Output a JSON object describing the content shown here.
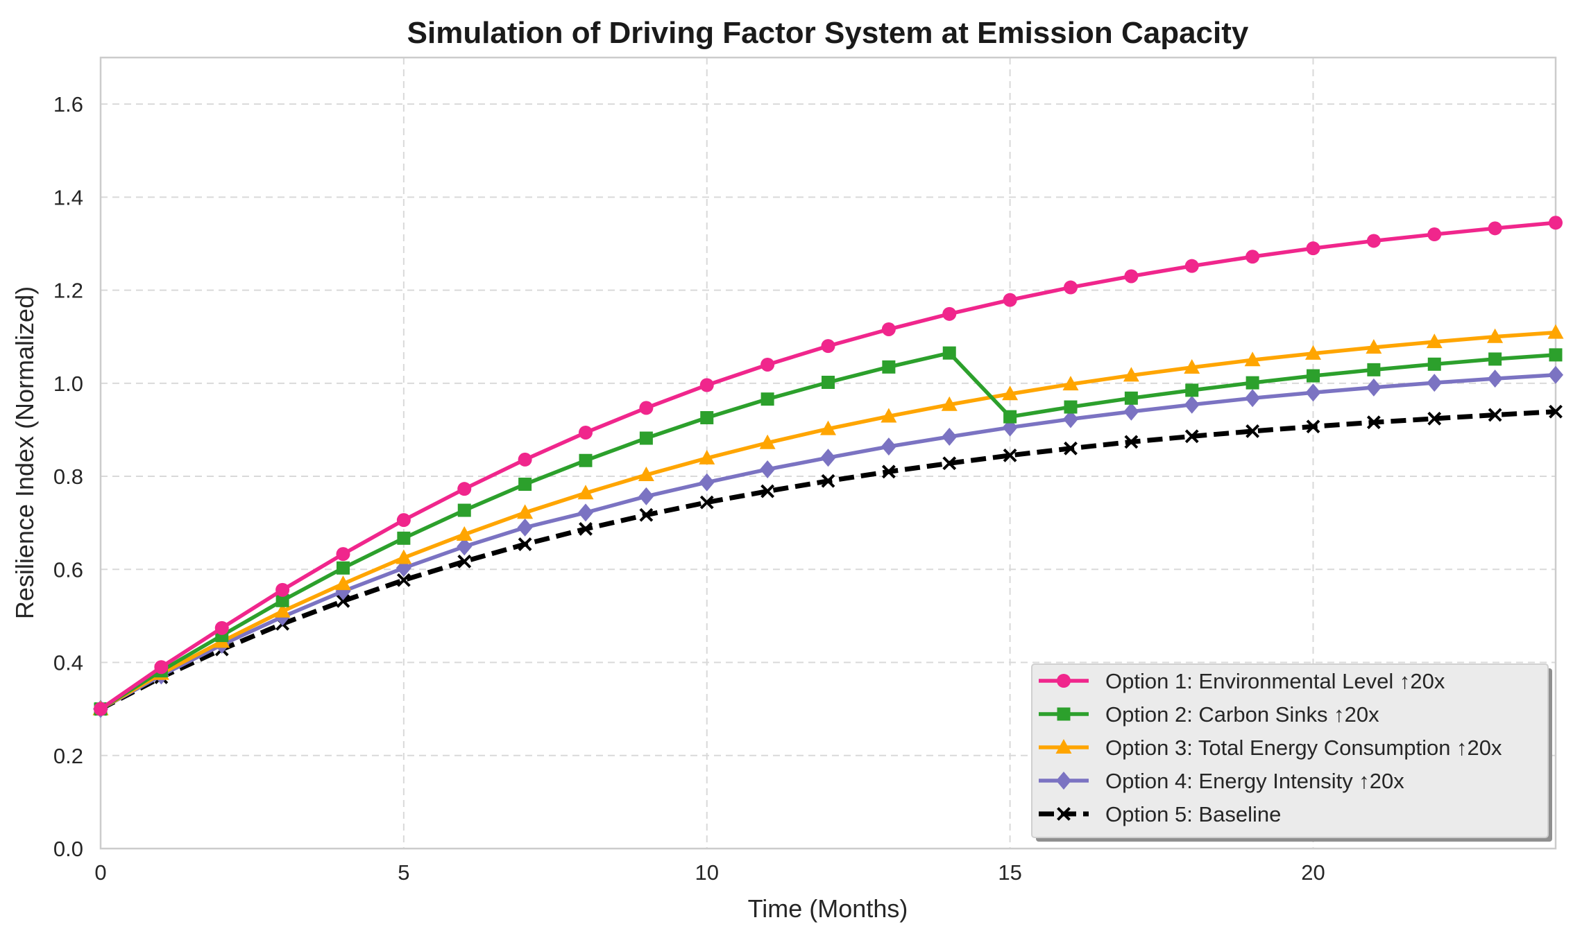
{
  "chart_data": {
    "type": "line",
    "title": "Simulation of Driving Factor System at Emission Capacity",
    "xlabel": "Time (Months)",
    "ylabel": "Resilience Index (Normalized)",
    "xlim": [
      0,
      24
    ],
    "ylim": [
      0,
      1.7
    ],
    "xticks": [
      0,
      5,
      10,
      15,
      20
    ],
    "yticks": [
      0.0,
      0.2,
      0.4,
      0.6,
      0.8,
      1.0,
      1.2,
      1.4,
      1.6
    ],
    "ytick_labels": [
      "0.0",
      "0.2",
      "0.4",
      "0.6",
      "0.8",
      "1.0",
      "1.2",
      "1.4",
      "1.6"
    ],
    "grid": true,
    "legend_position": "bottom-right",
    "x": [
      0,
      1,
      2,
      3,
      4,
      5,
      6,
      7,
      8,
      9,
      10,
      11,
      12,
      13,
      14,
      15,
      16,
      17,
      18,
      19,
      20,
      21,
      22,
      23,
      24
    ],
    "series": [
      {
        "name": "Option 1: Environmental Level ↑20x",
        "color": "#f0268c",
        "marker": "circle",
        "dash": "solid",
        "values": [
          0.3,
          0.39,
          0.474,
          0.556,
          0.633,
          0.706,
          0.773,
          0.836,
          0.894,
          0.947,
          0.996,
          1.04,
          1.08,
          1.116,
          1.149,
          1.179,
          1.206,
          1.23,
          1.252,
          1.272,
          1.29,
          1.306,
          1.32,
          1.333,
          1.345
        ]
      },
      {
        "name": "Option 2: Carbon Sinks ↑20x",
        "color": "#2ca02c",
        "marker": "square",
        "dash": "solid",
        "values": [
          0.3,
          0.382,
          0.458,
          0.533,
          0.603,
          0.667,
          0.727,
          0.783,
          0.834,
          0.882,
          0.926,
          0.966,
          1.002,
          1.035,
          1.065,
          0.928,
          0.949,
          0.968,
          0.985,
          1.001,
          1.016,
          1.029,
          1.041,
          1.052,
          1.061
        ]
      },
      {
        "name": "Option 3: Total Energy Consumption ↑20x",
        "color": "#ffa500",
        "marker": "triangle",
        "dash": "solid",
        "values": [
          0.3,
          0.376,
          0.445,
          0.51,
          0.569,
          0.625,
          0.675,
          0.722,
          0.764,
          0.803,
          0.839,
          0.872,
          0.902,
          0.929,
          0.954,
          0.977,
          0.998,
          1.017,
          1.034,
          1.05,
          1.064,
          1.077,
          1.089,
          1.1,
          1.109
        ]
      },
      {
        "name": "Option 4: Energy Intensity ↑20x",
        "color": "#7b73c2",
        "marker": "diamond",
        "dash": "solid",
        "values": [
          0.3,
          0.372,
          0.438,
          0.498,
          0.553,
          0.603,
          0.649,
          0.69,
          0.722,
          0.757,
          0.787,
          0.815,
          0.84,
          0.864,
          0.885,
          0.905,
          0.923,
          0.939,
          0.954,
          0.968,
          0.98,
          0.991,
          1.001,
          1.01,
          1.018
        ]
      },
      {
        "name": "Option 5: Baseline",
        "color": "#000000",
        "marker": "x",
        "dash": "dashed",
        "values": [
          0.3,
          0.368,
          0.428,
          0.483,
          0.532,
          0.577,
          0.617,
          0.654,
          0.687,
          0.717,
          0.744,
          0.768,
          0.79,
          0.81,
          0.828,
          0.845,
          0.86,
          0.874,
          0.886,
          0.897,
          0.907,
          0.916,
          0.924,
          0.932,
          0.939
        ]
      }
    ]
  }
}
